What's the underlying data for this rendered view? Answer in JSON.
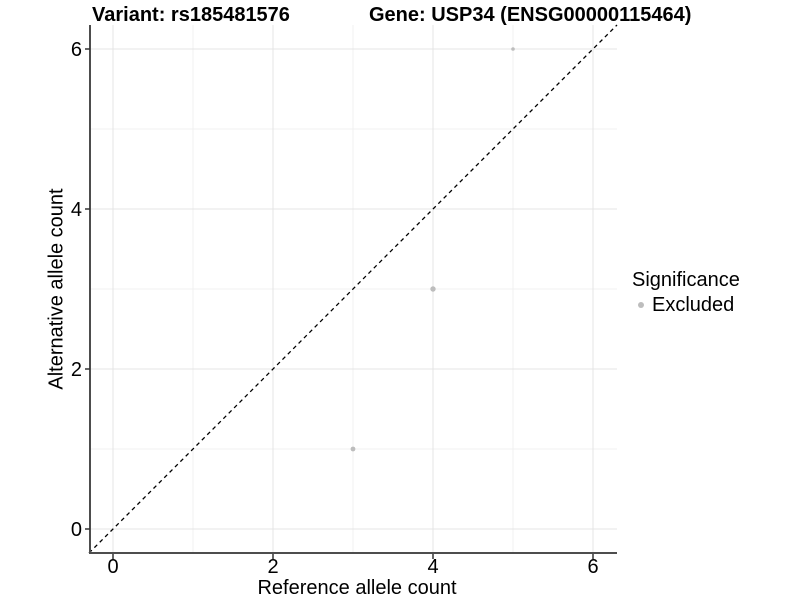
{
  "header": {
    "variant_title": "Variant: rs185481576",
    "gene_title": "Gene: USP34 (ENSG00000115464)"
  },
  "chart_data": {
    "type": "scatter",
    "xlabel": "Reference allele count",
    "ylabel": "Alternative allele count",
    "xlim": [
      -0.3,
      6.3
    ],
    "ylim": [
      -0.3,
      6.3
    ],
    "x_ticks": [
      0,
      2,
      4,
      6
    ],
    "y_ticks": [
      0,
      2,
      4,
      6
    ],
    "x_minor_gridlines": [
      1,
      3,
      5
    ],
    "y_minor_gridlines": [
      1,
      3,
      5
    ],
    "grid": "major and minor, light gray on white",
    "identity_line": {
      "style": "dashed",
      "slope": 1,
      "intercept": 0,
      "color": "#000000"
    },
    "series": [
      {
        "name": "Excluded",
        "color": "#bdbdbd",
        "points": [
          {
            "x": 5,
            "y": 6,
            "radius": 1.8
          },
          {
            "x": 4,
            "y": 3,
            "radius": 2.7
          },
          {
            "x": 3,
            "y": 1,
            "radius": 2.4
          }
        ]
      }
    ],
    "legend": {
      "title": "Significance",
      "position": "right",
      "items": [
        {
          "label": "Excluded",
          "color": "#bdbdbd",
          "marker": "circle"
        }
      ]
    }
  },
  "colors": {
    "background": "#ffffff",
    "axis_line": "#4d4d4d",
    "tick_mark": "#333333",
    "major_grid": "#e4e4e4",
    "minor_grid": "#f1f1f1",
    "text": "#000000",
    "point": "#bdbdbd",
    "identity_line": "#000000"
  }
}
